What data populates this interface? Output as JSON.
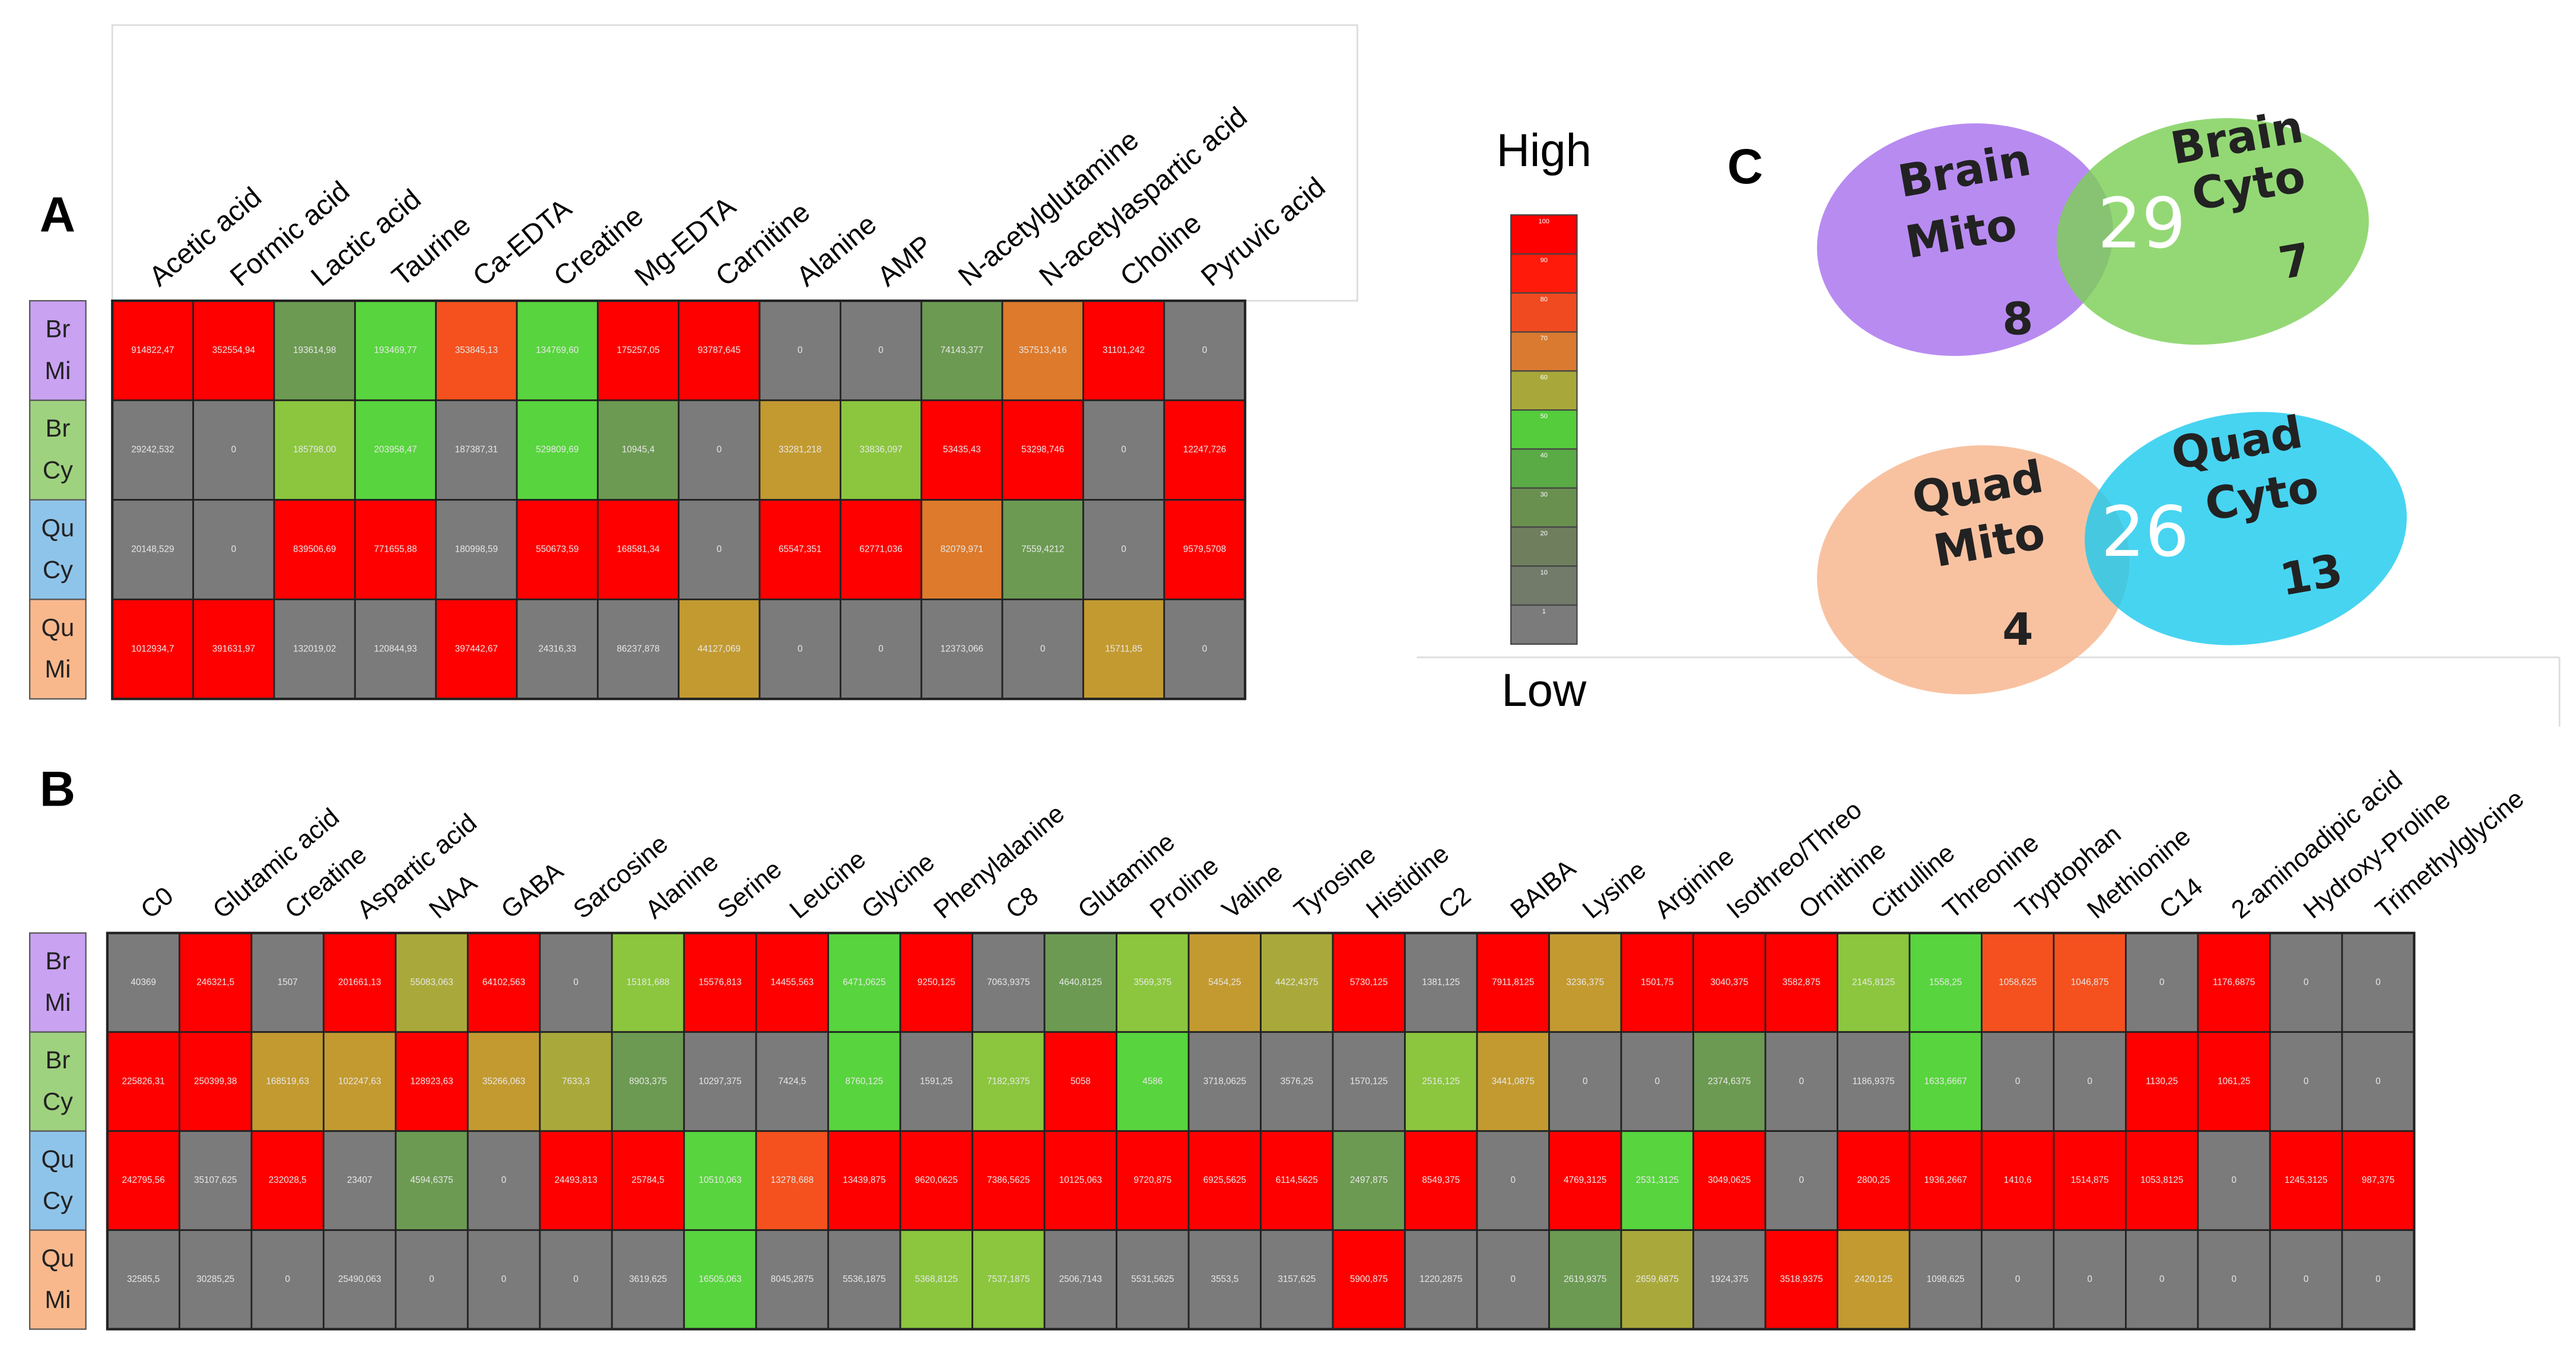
{
  "panels": {
    "a": {
      "label": "A",
      "columns": [
        "Acetic acid",
        "Formic acid",
        "Lactic acid",
        "Taurine",
        "Ca-EDTA",
        "Creatine",
        "Mg-EDTA",
        "Carnitine",
        "Alanine",
        "AMP",
        "N-acetylglutamine",
        "N-acetylaspartic acid",
        "Choline",
        "Pyruvic acid"
      ],
      "rows": [
        {
          "label": [
            "Br",
            "Mi"
          ],
          "label_color": "#c9a2f2",
          "cells": [
            "914822,47",
            "352554,94",
            "193614,98",
            "193469,77",
            "353845,13",
            "134769,60",
            "175257,05",
            "93787,645",
            "0",
            "0",
            "74143,377",
            "357513,416",
            "31101,242",
            "0"
          ],
          "colors": [
            "#ff0000",
            "#ff0000",
            "#6c9a52",
            "#58d43e",
            "#f4511e",
            "#58d43e",
            "#ff0000",
            "#ff0000",
            "#7b7b7b",
            "#7b7b7b",
            "#6c9a52",
            "#dd7a2b",
            "#ff0000",
            "#7b7b7b"
          ]
        },
        {
          "label": [
            "Br",
            "Cy"
          ],
          "label_color": "#9fd27f",
          "cells": [
            "29242,532",
            "0",
            "185798,00",
            "203958,47",
            "187387,31",
            "529809,69",
            "10945,4",
            "0",
            "33281,218",
            "33836,097",
            "53435,43",
            "53298,746",
            "0",
            "12247,726"
          ],
          "colors": [
            "#7b7b7b",
            "#7b7b7b",
            "#8bc63e",
            "#58d43e",
            "#7b7b7b",
            "#58d43e",
            "#6c9a52",
            "#7b7b7b",
            "#c29a30",
            "#8bc63e",
            "#ff0000",
            "#ff0000",
            "#7b7b7b",
            "#ff0000"
          ]
        },
        {
          "label": [
            "Qu",
            "Cy"
          ],
          "label_color": "#8fc4ea",
          "cells": [
            "20148,529",
            "0",
            "839506,69",
            "771655,88",
            "180998,59",
            "550673,59",
            "168581,34",
            "0",
            "65547,351",
            "62771,036",
            "82079,971",
            "7559,4212",
            "0",
            "9579,5708"
          ],
          "colors": [
            "#7b7b7b",
            "#7b7b7b",
            "#ff0000",
            "#ff0000",
            "#7b7b7b",
            "#ff0000",
            "#ff0000",
            "#7b7b7b",
            "#ff0000",
            "#ff0000",
            "#dd7a2b",
            "#6c9a52",
            "#7b7b7b",
            "#ff0000"
          ]
        },
        {
          "label": [
            "Qu",
            "Mi"
          ],
          "label_color": "#f9b88c",
          "cells": [
            "1012934,7",
            "391631,97",
            "132019,02",
            "120844,93",
            "397442,67",
            "24316,33",
            "86237,878",
            "44127,069",
            "0",
            "0",
            "12373,066",
            "0",
            "15711,85",
            "0"
          ],
          "colors": [
            "#ff0000",
            "#ff0000",
            "#7b7b7b",
            "#7b7b7b",
            "#ff0000",
            "#7b7b7b",
            "#7b7b7b",
            "#c29a30",
            "#7b7b7b",
            "#7b7b7b",
            "#7b7b7b",
            "#7b7b7b",
            "#c29a30",
            "#7b7b7b"
          ]
        }
      ]
    },
    "b": {
      "label": "B",
      "columns": [
        "C0",
        "Glutamic acid",
        "Creatine",
        "Aspartic acid",
        "NAA",
        "GABA",
        "Sarcosine",
        "Alanine",
        "Serine",
        "Leucine",
        "Glycine",
        "Phenylalanine",
        "C8",
        "Glutamine",
        "Proline",
        "Valine",
        "Tyrosine",
        "Histidine",
        "C2",
        "BAIBA",
        "Lysine",
        "Arginine",
        "Isothreo/Threo",
        "Ornithine",
        "Citrulline",
        "Threonine",
        "Tryptophan",
        "Methionine",
        "C14",
        "2-aminoadipic acid",
        "Hydroxy-Proline",
        "Trimethylglycine"
      ],
      "rows": [
        {
          "label": [
            "Br",
            "Mi"
          ],
          "label_color": "#c9a2f2",
          "cells": [
            "40369",
            "246321,5",
            "1507",
            "201661,13",
            "55083,063",
            "64102,563",
            "0",
            "15181,688",
            "15576,813",
            "14455,563",
            "6471,0625",
            "9250,125",
            "7063,9375",
            "4640,8125",
            "3569,375",
            "5454,25",
            "4422,4375",
            "5730,125",
            "1381,125",
            "7911,8125",
            "3236,375",
            "1501,75",
            "3040,375",
            "3582,875",
            "2145,8125",
            "1558,25",
            "1058,625",
            "1046,875",
            "0",
            "1176,6875",
            "0",
            "0"
          ],
          "colors": [
            "#7b7b7b",
            "#ff0000",
            "#7b7b7b",
            "#ff0000",
            "#a9a93b",
            "#ff0000",
            "#7b7b7b",
            "#8bc63e",
            "#ff0000",
            "#ff0000",
            "#58d43e",
            "#ff0000",
            "#7b7b7b",
            "#6c9a52",
            "#8bc63e",
            "#c29a30",
            "#a9a93b",
            "#ff0000",
            "#7b7b7b",
            "#ff0000",
            "#c29a30",
            "#ff0000",
            "#ff0000",
            "#ff0000",
            "#8bc63e",
            "#58d43e",
            "#f4511e",
            "#f4511e",
            "#7b7b7b",
            "#ff0000",
            "#7b7b7b",
            "#7b7b7b"
          ]
        },
        {
          "label": [
            "Br",
            "Cy"
          ],
          "label_color": "#9fd27f",
          "cells": [
            "225826,31",
            "250399,38",
            "168519,63",
            "102247,63",
            "128923,63",
            "35266,063",
            "7633,3",
            "8903,375",
            "10297,375",
            "7424,5",
            "8760,125",
            "1591,25",
            "7182,9375",
            "5058",
            "4586",
            "3718,0625",
            "3576,25",
            "1570,125",
            "2516,125",
            "3441,0875",
            "0",
            "0",
            "2374,6375",
            "0",
            "1186,9375",
            "1633,6667",
            "0",
            "0",
            "1130,25",
            "1061,25",
            "0",
            "0"
          ],
          "colors": [
            "#ff0000",
            "#ff0000",
            "#c29a30",
            "#c29a30",
            "#ff0000",
            "#c29a30",
            "#a9a93b",
            "#6c9a52",
            "#7b7b7b",
            "#7b7b7b",
            "#58d43e",
            "#7b7b7b",
            "#8bc63e",
            "#ff0000",
            "#58d43e",
            "#7b7b7b",
            "#7b7b7b",
            "#7b7b7b",
            "#8bc63e",
            "#c29a30",
            "#7b7b7b",
            "#7b7b7b",
            "#6c9a52",
            "#7b7b7b",
            "#7b7b7b",
            "#58d43e",
            "#7b7b7b",
            "#7b7b7b",
            "#ff0000",
            "#ff0000",
            "#7b7b7b",
            "#7b7b7b"
          ]
        },
        {
          "label": [
            "Qu",
            "Cy"
          ],
          "label_color": "#8fc4ea",
          "cells": [
            "242795,56",
            "35107,625",
            "232028,5",
            "23407",
            "4594,6375",
            "0",
            "24493,813",
            "25784,5",
            "10510,063",
            "13278,688",
            "13439,875",
            "9620,0625",
            "7386,5625",
            "10125,063",
            "9720,875",
            "6925,5625",
            "6114,5625",
            "2497,875",
            "8549,375",
            "0",
            "4769,3125",
            "2531,3125",
            "3049,0625",
            "0",
            "2800,25",
            "1936,2667",
            "1410,6",
            "1514,875",
            "1053,8125",
            "0",
            "1245,3125",
            "987,375"
          ],
          "colors": [
            "#ff0000",
            "#7b7b7b",
            "#ff0000",
            "#7b7b7b",
            "#6c9a52",
            "#7b7b7b",
            "#ff0000",
            "#ff0000",
            "#58d43e",
            "#f4511e",
            "#ff0000",
            "#ff0000",
            "#ff0000",
            "#ff0000",
            "#ff0000",
            "#ff0000",
            "#ff0000",
            "#6c9a52",
            "#ff0000",
            "#7b7b7b",
            "#ff0000",
            "#58d43e",
            "#ff0000",
            "#7b7b7b",
            "#ff0000",
            "#ff0000",
            "#ff0000",
            "#ff0000",
            "#ff0000",
            "#7b7b7b",
            "#ff0000",
            "#ff0000"
          ]
        },
        {
          "label": [
            "Qu",
            "Mi"
          ],
          "label_color": "#f9b88c",
          "cells": [
            "32585,5",
            "30285,25",
            "0",
            "25490,063",
            "0",
            "0",
            "0",
            "3619,625",
            "16505,063",
            "8045,2875",
            "5536,1875",
            "5368,8125",
            "7537,1875",
            "2506,7143",
            "5531,5625",
            "3553,5",
            "3157,625",
            "5900,875",
            "1220,2875",
            "0",
            "2619,9375",
            "2659,6875",
            "1924,375",
            "3518,9375",
            "2420,125",
            "1098,625",
            "0",
            "0",
            "0",
            "0",
            "0",
            "0"
          ],
          "colors": [
            "#7b7b7b",
            "#7b7b7b",
            "#7b7b7b",
            "#7b7b7b",
            "#7b7b7b",
            "#7b7b7b",
            "#7b7b7b",
            "#7b7b7b",
            "#58d43e",
            "#7b7b7b",
            "#7b7b7b",
            "#8bc63e",
            "#8bc63e",
            "#7b7b7b",
            "#7b7b7b",
            "#7b7b7b",
            "#7b7b7b",
            "#ff0000",
            "#7b7b7b",
            "#7b7b7b",
            "#6c9a52",
            "#a9a93b",
            "#7b7b7b",
            "#ff0000",
            "#c29a30",
            "#7b7b7b",
            "#7b7b7b",
            "#7b7b7b",
            "#7b7b7b",
            "#7b7b7b",
            "#7b7b7b",
            "#7b7b7b"
          ]
        }
      ]
    },
    "scale": {
      "high": "High",
      "low": "Low",
      "steps": [
        100,
        90,
        80,
        70,
        60,
        50,
        40,
        30,
        20,
        10,
        1
      ],
      "colors": [
        "#ff0000",
        "#ff1a0a",
        "#f04a20",
        "#d97a30",
        "#a8a83a",
        "#55cc3c",
        "#5aaa45",
        "#6a9050",
        "#6f7f5e",
        "#727a6a",
        "#7b7b7b"
      ]
    },
    "c": {
      "label": "C",
      "venns": [
        {
          "left": {
            "name": [
              "Brain",
              "Mito"
            ],
            "count": 8,
            "color": "#a872ee"
          },
          "right": {
            "name": [
              "Brain",
              "Cyto"
            ],
            "count": 7,
            "color": "#7dcf57"
          },
          "overlap": 29
        },
        {
          "left": {
            "name": [
              "Quad",
              "Mito"
            ],
            "count": 4,
            "color": "#f7b48c"
          },
          "right": {
            "name": [
              "Quad",
              "Cyto"
            ],
            "count": 13,
            "color": "#1ecbee"
          },
          "overlap": 26
        }
      ]
    }
  }
}
